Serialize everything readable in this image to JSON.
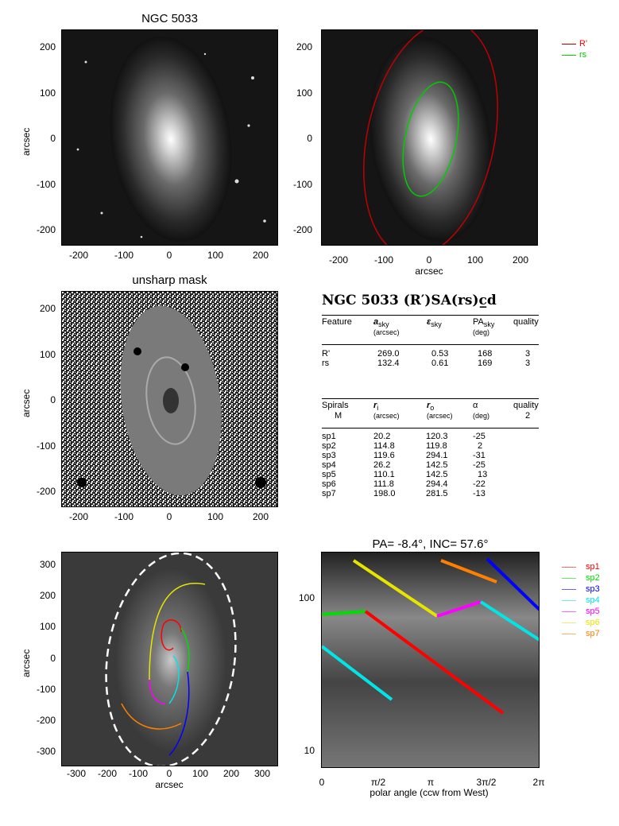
{
  "panels": {
    "p1_title": "NGC 5033",
    "p3_title": "unsharp mask",
    "p6_title": "PA=  -8.4°, INC=  57.6°",
    "ylabel": "arcsec",
    "xlabel": "arcsec",
    "xlabel_polar": "polar angle (ccw from West)",
    "ticks_250": [
      "200",
      "100",
      "0",
      "-100",
      "-200"
    ],
    "xticks_250": [
      "-200",
      "-100",
      "0",
      "100",
      "200"
    ],
    "ticks_350": [
      "300",
      "200",
      "100",
      "0",
      "-100",
      "-200",
      "-300"
    ],
    "xticks_350": [
      "-300",
      "-200",
      "-100",
      "0",
      "100",
      "200",
      "300"
    ],
    "polar_yticks": [
      "100",
      "10"
    ],
    "polar_xticks": [
      "0",
      "π/2",
      "π",
      "3π/2",
      "2π"
    ]
  },
  "legend_top": [
    {
      "label": "R'",
      "color": "#ff0000"
    },
    {
      "label": "rs",
      "color": "#00cc00"
    }
  ],
  "legend_bottom": [
    {
      "label": "sp1",
      "color": "#ff0000"
    },
    {
      "label": "sp2",
      "color": "#00dd00"
    },
    {
      "label": "sp3",
      "color": "#0000ff"
    },
    {
      "label": "sp4",
      "color": "#00e5e5"
    },
    {
      "label": "sp5",
      "color": "#ff00ff"
    },
    {
      "label": "sp6",
      "color": "#e5e500"
    },
    {
      "label": "sp7",
      "color": "#ff8000"
    }
  ],
  "table": {
    "heading": "NGC 5033  (R′)SA(rs)c̲d",
    "feat_headers": [
      "Feature",
      "a",
      "sky",
      "(arcsec)",
      "ε",
      "sky",
      "PA",
      "sky",
      "(deg)",
      "quality"
    ],
    "features": [
      [
        "R'",
        "269.0",
        "0.53",
        "168",
        "3"
      ],
      [
        "rs",
        "132.4",
        "0.61",
        "169",
        "3"
      ]
    ],
    "spiral_headers": [
      "Spirals",
      "M",
      "r",
      "i",
      "(arcsec)",
      "r",
      "o",
      "(arcsec)",
      "α",
      "(deg)",
      "quality",
      "2"
    ],
    "spirals": [
      [
        "sp1",
        "20.2",
        "120.3",
        "-25"
      ],
      [
        "sp2",
        "114.8",
        "119.8",
        "2"
      ],
      [
        "sp3",
        "119.6",
        "294.1",
        "-31"
      ],
      [
        "sp4",
        "26.2",
        "142.5",
        "-25"
      ],
      [
        "sp5",
        "110.1",
        "142.5",
        "13"
      ],
      [
        "sp6",
        "111.8",
        "294.4",
        "-22"
      ],
      [
        "sp7",
        "198.0",
        "281.5",
        "-13"
      ]
    ]
  }
}
